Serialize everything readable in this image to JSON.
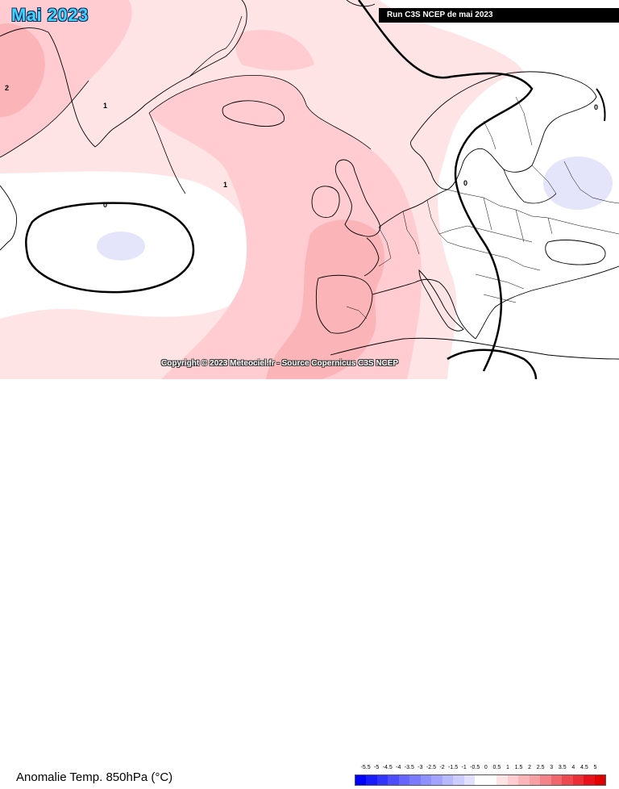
{
  "header": {
    "month_title": "Mai 2023",
    "run_label": "Run C3S NCEP de mai 2023"
  },
  "map": {
    "copyright": "Copyright © 2023 Meteociel.fr - Source Copernicus C3S NCEP",
    "contour_labels": {
      "greenland": "2",
      "north_atlantic_1": "1",
      "mid_atlantic_1": "1",
      "atlantic_0": "0",
      "europe_0": "0",
      "russia_0": "0"
    },
    "colors": {
      "anom_0_05": "#ffffff",
      "anom_05_1": "#ffe4e6",
      "anom_1_15": "#ffcdd1",
      "anom_15_2": "#fbb4b8",
      "anom_2_25": "#f7a0a4",
      "anom_neg_05_0": "#e4e4fb",
      "land_outline": "#000000",
      "zero_contour": "#000000"
    }
  },
  "footer": {
    "variable_title": "Anomalie Temp. 850hPa (°C)",
    "legend_ticks": [
      "-5.5",
      "-5",
      "-4.5",
      "-4",
      "-3.5",
      "-3",
      "-2.5",
      "-2",
      "-1.5",
      "-1",
      "-0.5",
      "0",
      "0.5",
      "1",
      "1.5",
      "2",
      "2.5",
      "3",
      "3.5",
      "4",
      "4.5",
      "5"
    ],
    "legend_colors": [
      "#0000ff",
      "#1a1aff",
      "#3333ff",
      "#4d4dff",
      "#6666ff",
      "#7a7aff",
      "#8f8fff",
      "#a3a3ff",
      "#b8b8ff",
      "#ccccff",
      "#e1e1ff",
      "#ffffff",
      "#ffffff",
      "#ffe4e6",
      "#ffcdd1",
      "#fbb4b8",
      "#f7a0a4",
      "#f38389",
      "#f0666d",
      "#ee4951",
      "#eb2d36",
      "#e8101b",
      "#e00000"
    ]
  }
}
